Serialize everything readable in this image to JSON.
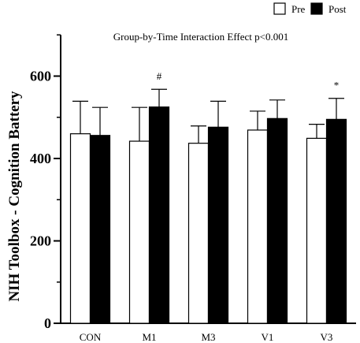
{
  "chart_data": {
    "type": "bar",
    "title": "Group-by-Time Interaction Effect p<0.001",
    "ylabel": "NIH Toolbox - Cognition Battery",
    "xlabel": "",
    "ylim": [
      0,
      700
    ],
    "yticks": [
      0,
      200,
      400,
      600
    ],
    "grid": false,
    "legend_position": "top-right",
    "categories": [
      "CON",
      "M1",
      "M3",
      "V1",
      "V3"
    ],
    "series": [
      {
        "name": "Pre",
        "fill": "#ffffff",
        "values": [
          460,
          442,
          437,
          469,
          449
        ],
        "errors": [
          79,
          82,
          42,
          46,
          34
        ]
      },
      {
        "name": "Post",
        "fill": "#000000",
        "values": [
          456,
          525,
          476,
          497,
          495
        ],
        "errors": [
          68,
          43,
          63,
          45,
          51
        ]
      }
    ],
    "annotations": [
      {
        "category": "M1",
        "series": "Post",
        "text": "#"
      },
      {
        "category": "V3",
        "series": "Post",
        "text": "*"
      }
    ]
  }
}
